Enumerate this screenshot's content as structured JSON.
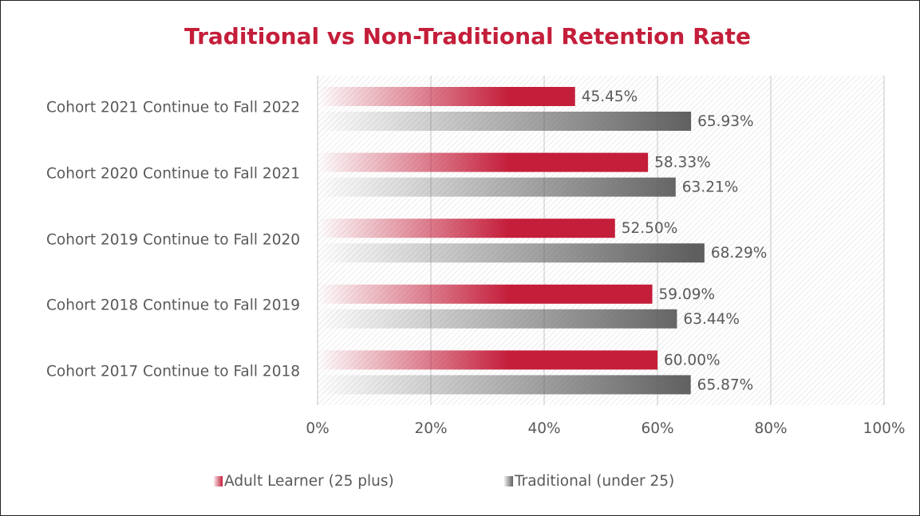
{
  "chart_data": {
    "type": "bar",
    "orientation": "horizontal",
    "title": "Traditional vs Non-Traditional Retention Rate",
    "categories": [
      "Cohort 2021 Continue to Fall 2022",
      "Cohort 2020 Continue to Fall 2021",
      "Cohort 2019 Continue to Fall 2020",
      "Cohort 2018 Continue to Fall 2019",
      "Cohort 2017 Continue to Fall 2018"
    ],
    "series": [
      {
        "name": "Adult Learner (25 plus)",
        "color": "#c41e3a",
        "values": [
          45.45,
          58.33,
          52.5,
          59.09,
          60.0
        ],
        "value_labels": [
          "45.45%",
          "58.33%",
          "52.50%",
          "59.09%",
          "60.00%"
        ]
      },
      {
        "name": "Traditional (under 25)",
        "color": "#5f5f5f",
        "values": [
          65.93,
          63.21,
          68.29,
          63.44,
          65.87
        ],
        "value_labels": [
          "65.93%",
          "63.21%",
          "68.29%",
          "63.44%",
          "65.87%"
        ]
      }
    ],
    "xlim": [
      0,
      100
    ],
    "xticks": [
      {
        "value": 0,
        "label": "0%"
      },
      {
        "value": 20,
        "label": "20%"
      },
      {
        "value": 40,
        "label": "40%"
      },
      {
        "value": 60,
        "label": "60%"
      },
      {
        "value": 80,
        "label": "80%"
      },
      {
        "value": 100,
        "label": "100%"
      }
    ],
    "grid": true,
    "legend": "bottom"
  }
}
